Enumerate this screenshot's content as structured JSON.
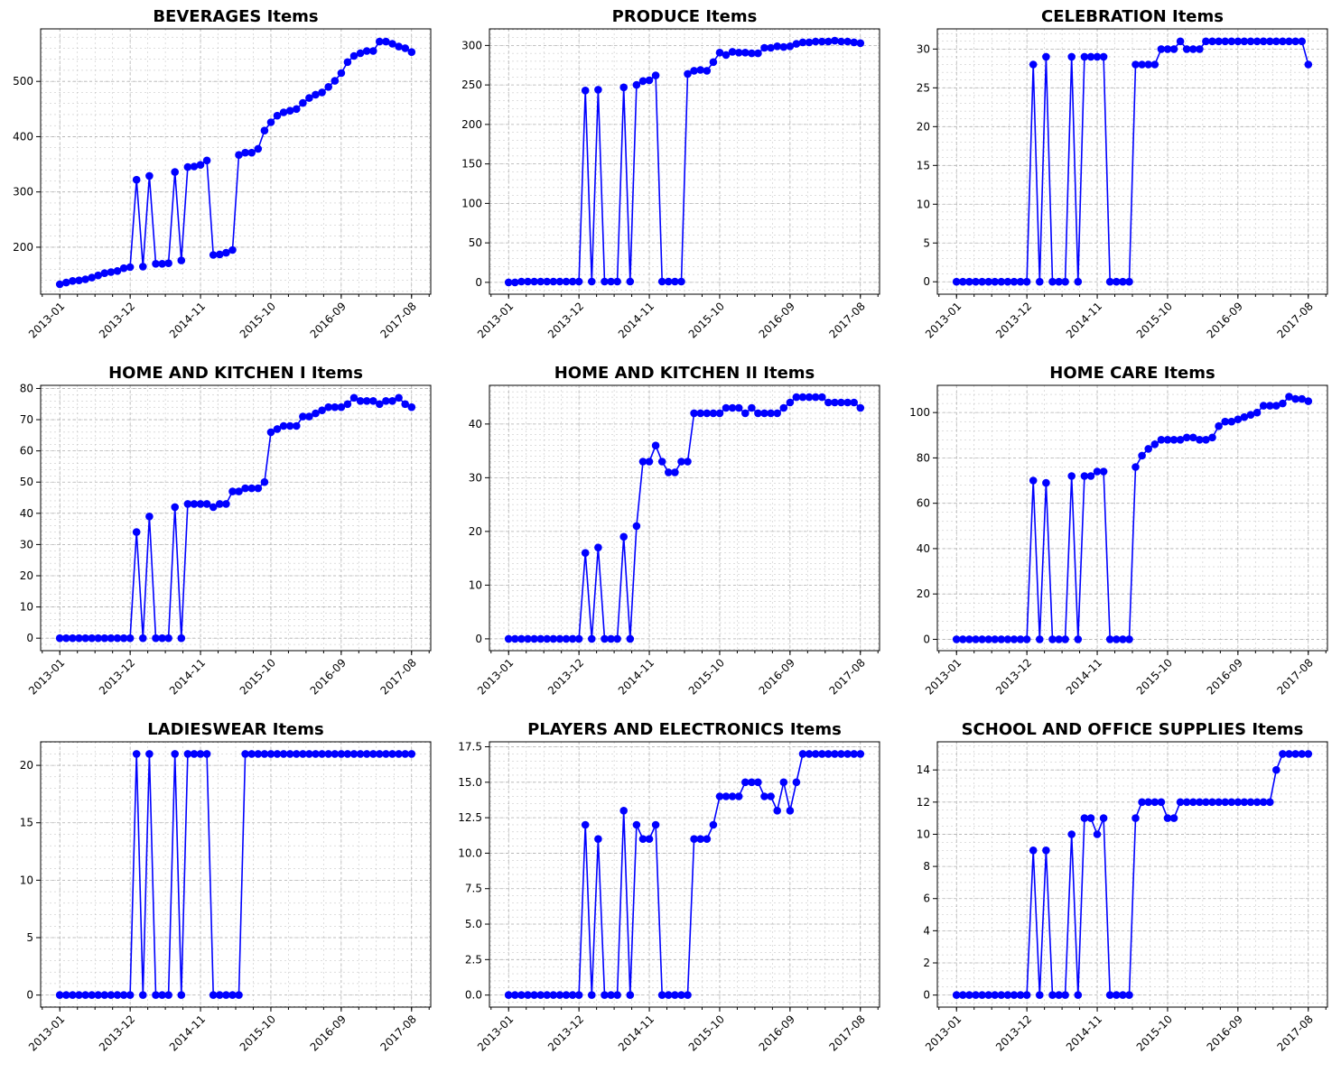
{
  "figure": {
    "rows": 3,
    "cols": 3,
    "line_color": "#0000ff"
  },
  "x_tick_labels": [
    "2013-01",
    "2013-12",
    "2014-11",
    "2015-10",
    "2016-09",
    "2017-08"
  ],
  "chart_data": [
    {
      "type": "line",
      "title": "BEVERAGES Items",
      "xlabel": "",
      "ylabel": "",
      "x_range": [
        "2013-01",
        "2017-08"
      ],
      "ylim": [
        115,
        595
      ],
      "y_ticks": [
        200,
        300,
        400,
        500
      ],
      "y_minor_step": 20,
      "grid": true,
      "series": [
        {
          "color": "#0000ff",
          "marker": "circle",
          "values": [
            133,
            136,
            139,
            140,
            142,
            145,
            149,
            153,
            155,
            157,
            162,
            164,
            322,
            165,
            329,
            170,
            170,
            171,
            336,
            176,
            345,
            346,
            349,
            357,
            186,
            187,
            190,
            195,
            367,
            371,
            371,
            378,
            411,
            426,
            438,
            444,
            447,
            450,
            461,
            470,
            476,
            480,
            490,
            501,
            515,
            535,
            546,
            551,
            555,
            555,
            572,
            572,
            568,
            563,
            560,
            553
          ]
        }
      ]
    },
    {
      "type": "line",
      "title": "PRODUCE Items",
      "xlabel": "",
      "ylabel": "",
      "x_range": [
        "2013-01",
        "2017-08"
      ],
      "ylim": [
        -15,
        321
      ],
      "y_ticks": [
        0,
        50,
        100,
        150,
        200,
        250,
        300
      ],
      "y_minor_step": 10,
      "grid": true,
      "series": [
        {
          "color": "#0000ff",
          "marker": "circle",
          "values": [
            0,
            0,
            1,
            1,
            1,
            1,
            1,
            1,
            1,
            1,
            1,
            1,
            243,
            1,
            244,
            1,
            1,
            1,
            247,
            1,
            250,
            255,
            256,
            262,
            1,
            1,
            1,
            1,
            264,
            268,
            269,
            268,
            279,
            291,
            288,
            292,
            291,
            291,
            290,
            290,
            297,
            297,
            299,
            298,
            299,
            302,
            304,
            304,
            305,
            305,
            305,
            306,
            305,
            305,
            304,
            303
          ]
        }
      ]
    },
    {
      "type": "line",
      "title": "CELEBRATION Items",
      "xlabel": "",
      "ylabel": "",
      "x_range": [
        "2013-01",
        "2017-08"
      ],
      "ylim": [
        -1.6,
        32.6
      ],
      "y_ticks": [
        0,
        5,
        10,
        15,
        20,
        25,
        30
      ],
      "y_minor_step": 1,
      "grid": true,
      "series": [
        {
          "color": "#0000ff",
          "marker": "circle",
          "values": [
            0,
            0,
            0,
            0,
            0,
            0,
            0,
            0,
            0,
            0,
            0,
            0,
            28,
            0,
            29,
            0,
            0,
            0,
            29,
            0,
            29,
            29,
            29,
            29,
            0,
            0,
            0,
            0,
            28,
            28,
            28,
            28,
            30,
            30,
            30,
            31,
            30,
            30,
            30,
            31,
            31,
            31,
            31,
            31,
            31,
            31,
            31,
            31,
            31,
            31,
            31,
            31,
            31,
            31,
            31,
            28
          ]
        }
      ]
    },
    {
      "type": "line",
      "title": "HOME AND KITCHEN I Items",
      "xlabel": "",
      "ylabel": "",
      "x_range": [
        "2013-01",
        "2017-08"
      ],
      "ylim": [
        -4,
        81
      ],
      "y_ticks": [
        0,
        10,
        20,
        30,
        40,
        50,
        60,
        70,
        80
      ],
      "y_minor_step": 2,
      "grid": true,
      "series": [
        {
          "color": "#0000ff",
          "marker": "circle",
          "values": [
            0,
            0,
            0,
            0,
            0,
            0,
            0,
            0,
            0,
            0,
            0,
            0,
            34,
            0,
            39,
            0,
            0,
            0,
            42,
            0,
            43,
            43,
            43,
            43,
            42,
            43,
            43,
            47,
            47,
            48,
            48,
            48,
            50,
            66,
            67,
            68,
            68,
            68,
            71,
            71,
            72,
            73,
            74,
            74,
            74,
            75,
            77,
            76,
            76,
            76,
            75,
            76,
            76,
            77,
            75,
            74
          ]
        }
      ]
    },
    {
      "type": "line",
      "title": "HOME AND KITCHEN II Items",
      "xlabel": "",
      "ylabel": "",
      "x_range": [
        "2013-01",
        "2017-08"
      ],
      "ylim": [
        -2.2,
        47.2
      ],
      "y_ticks": [
        0,
        10,
        20,
        30,
        40
      ],
      "y_minor_step": 1,
      "grid": true,
      "series": [
        {
          "color": "#0000ff",
          "marker": "circle",
          "values": [
            0,
            0,
            0,
            0,
            0,
            0,
            0,
            0,
            0,
            0,
            0,
            0,
            16,
            0,
            17,
            0,
            0,
            0,
            19,
            0,
            21,
            33,
            33,
            36,
            33,
            31,
            31,
            33,
            33,
            42,
            42,
            42,
            42,
            42,
            43,
            43,
            43,
            42,
            43,
            42,
            42,
            42,
            42,
            43,
            44,
            45,
            45,
            45,
            45,
            45,
            44,
            44,
            44,
            44,
            44,
            43
          ]
        }
      ]
    },
    {
      "type": "line",
      "title": "HOME CARE Items",
      "xlabel": "",
      "ylabel": "",
      "x_range": [
        "2013-01",
        "2017-08"
      ],
      "ylim": [
        -5,
        112
      ],
      "y_ticks": [
        0,
        20,
        40,
        60,
        80,
        100
      ],
      "y_minor_step": 4,
      "grid": true,
      "series": [
        {
          "color": "#0000ff",
          "marker": "circle",
          "values": [
            0,
            0,
            0,
            0,
            0,
            0,
            0,
            0,
            0,
            0,
            0,
            0,
            70,
            0,
            69,
            0,
            0,
            0,
            72,
            0,
            72,
            72,
            74,
            74,
            0,
            0,
            0,
            0,
            76,
            81,
            84,
            86,
            88,
            88,
            88,
            88,
            89,
            89,
            88,
            88,
            89,
            94,
            96,
            96,
            97,
            98,
            99,
            100,
            103,
            103,
            103,
            104,
            107,
            106,
            106,
            105
          ]
        }
      ]
    },
    {
      "type": "line",
      "title": "LADIESWEAR Items",
      "xlabel": "",
      "ylabel": "",
      "x_range": [
        "2013-01",
        "2017-08"
      ],
      "ylim": [
        -1.05,
        22.05
      ],
      "y_ticks": [
        0,
        5,
        10,
        15,
        20
      ],
      "y_minor_step": 1,
      "grid": true,
      "series": [
        {
          "color": "#0000ff",
          "marker": "circle",
          "values": [
            0,
            0,
            0,
            0,
            0,
            0,
            0,
            0,
            0,
            0,
            0,
            0,
            21,
            0,
            21,
            0,
            0,
            0,
            21,
            0,
            21,
            21,
            21,
            21,
            0,
            0,
            0,
            0,
            0,
            21,
            21,
            21,
            21,
            21,
            21,
            21,
            21,
            21,
            21,
            21,
            21,
            21,
            21,
            21,
            21,
            21,
            21,
            21,
            21,
            21,
            21,
            21,
            21,
            21,
            21,
            21
          ]
        }
      ]
    },
    {
      "type": "line",
      "title": "PLAYERS AND ELECTRONICS Items",
      "xlabel": "",
      "ylabel": "",
      "x_range": [
        "2013-01",
        "2017-08"
      ],
      "ylim": [
        -0.85,
        17.85
      ],
      "y_ticks": [
        0.0,
        2.5,
        5.0,
        7.5,
        10.0,
        12.5,
        15.0,
        17.5
      ],
      "y_tick_labels": [
        "0.0",
        "2.5",
        "5.0",
        "7.5",
        "10.0",
        "12.5",
        "15.0",
        "17.5"
      ],
      "y_minor_step": 0.5,
      "grid": true,
      "series": [
        {
          "color": "#0000ff",
          "marker": "circle",
          "values": [
            0,
            0,
            0,
            0,
            0,
            0,
            0,
            0,
            0,
            0,
            0,
            0,
            12,
            0,
            11,
            0,
            0,
            0,
            13,
            0,
            12,
            11,
            11,
            12,
            0,
            0,
            0,
            0,
            0,
            11,
            11,
            11,
            12,
            14,
            14,
            14,
            14,
            15,
            15,
            15,
            14,
            14,
            13,
            15,
            13,
            15,
            17,
            17,
            17,
            17,
            17,
            17,
            17,
            17,
            17,
            17
          ]
        }
      ]
    },
    {
      "type": "line",
      "title": "SCHOOL AND OFFICE SUPPLIES Items",
      "xlabel": "",
      "ylabel": "",
      "x_range": [
        "2013-01",
        "2017-08"
      ],
      "ylim": [
        -0.75,
        15.75
      ],
      "y_ticks": [
        0,
        2,
        4,
        6,
        8,
        10,
        12,
        14
      ],
      "y_minor_step": 0.5,
      "grid": true,
      "series": [
        {
          "color": "#0000ff",
          "marker": "circle",
          "values": [
            0,
            0,
            0,
            0,
            0,
            0,
            0,
            0,
            0,
            0,
            0,
            0,
            9,
            0,
            9,
            0,
            0,
            0,
            10,
            0,
            11,
            11,
            10,
            11,
            0,
            0,
            0,
            0,
            11,
            12,
            12,
            12,
            12,
            11,
            11,
            12,
            12,
            12,
            12,
            12,
            12,
            12,
            12,
            12,
            12,
            12,
            12,
            12,
            12,
            12,
            14,
            15,
            15,
            15,
            15,
            15
          ]
        }
      ]
    }
  ]
}
